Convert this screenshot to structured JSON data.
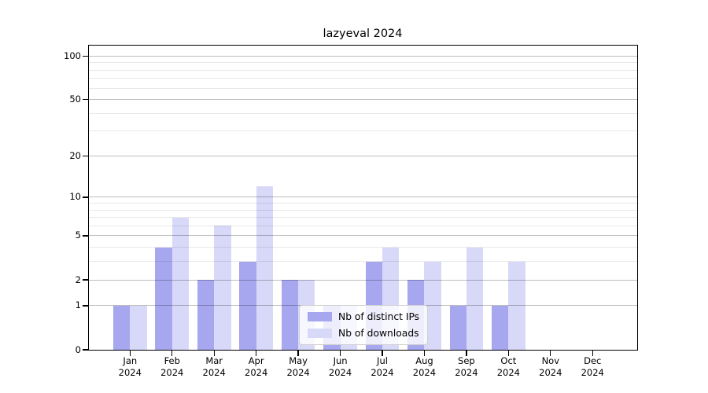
{
  "chart_data": {
    "type": "bar",
    "title": "lazyeval 2024",
    "categories": [
      "Jan",
      "Feb",
      "Mar",
      "Apr",
      "May",
      "Jun",
      "Jul",
      "Aug",
      "Sep",
      "Oct",
      "Nov",
      "Dec"
    ],
    "x_year_label": "2024",
    "series": [
      {
        "name": "Nb of distinct IPs",
        "color": "#a7a7f0",
        "values": [
          1,
          4,
          2,
          3,
          2,
          1,
          3,
          2,
          1,
          1,
          0,
          0
        ]
      },
      {
        "name": "Nb of downloads",
        "color": "#d8d8f8",
        "values": [
          1,
          7,
          6,
          12,
          2,
          1,
          4,
          3,
          4,
          3,
          0,
          0
        ]
      }
    ],
    "xlabel": "",
    "ylabel": "",
    "yscale": "log1p",
    "ylim": [
      0,
      118
    ],
    "y_major_ticks": [
      0,
      1,
      2,
      5,
      10,
      20,
      50,
      100
    ],
    "y_minor_ticks": [
      3,
      4,
      6,
      7,
      8,
      9,
      30,
      40,
      60,
      70,
      80,
      90
    ],
    "grid": "horizontal",
    "legend": {
      "position": "lower center",
      "entries": [
        "Nb of distinct IPs",
        "Nb of downloads"
      ]
    }
  }
}
